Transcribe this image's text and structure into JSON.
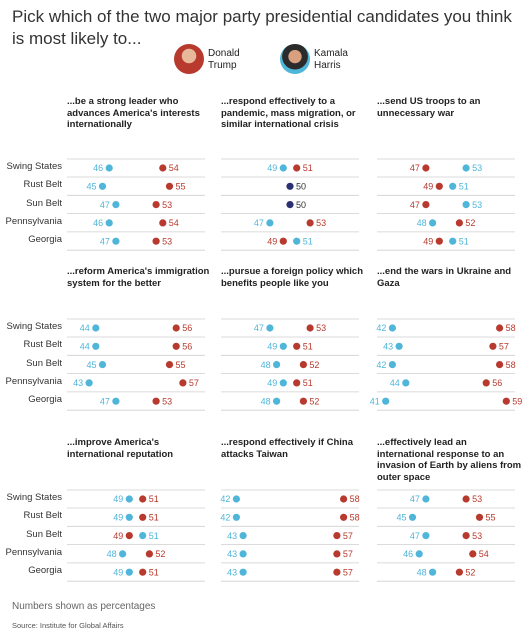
{
  "title": "Pick which of the two major party presidential candidates you think is most likely to...",
  "legend": [
    {
      "name_line1": "Donald",
      "name_line2": "Trump",
      "color": "#b83a2e"
    },
    {
      "name_line1": "Kamala",
      "name_line2": "Harris",
      "color": "#4fb6d9"
    }
  ],
  "footnote": "Numbers shown as percentages",
  "source": "Source: Institute for Global Affairs",
  "colors": {
    "trump": "#b83a2e",
    "harris": "#4fb6d9",
    "tie": "#2b2f73"
  },
  "chart_data": {
    "type": "dot-plot",
    "regions": [
      "Swing States",
      "Rust Belt",
      "Sun Belt",
      "Pennsylvania",
      "Georgia"
    ],
    "series": [
      {
        "name": "Donald Trump"
      },
      {
        "name": "Kamala Harris"
      }
    ],
    "xlim": [
      40,
      60
    ],
    "unit": "%",
    "panels": [
      {
        "title": "...be a strong leader who advances America's interests internationally",
        "trump": [
          54,
          55,
          53,
          54,
          53
        ],
        "harris": [
          46,
          45,
          47,
          46,
          47
        ]
      },
      {
        "title": "...respond effectively to a pandemic, mass migration, or similar international crisis",
        "trump": [
          51,
          50,
          50,
          53,
          49
        ],
        "harris": [
          49,
          50,
          50,
          47,
          51
        ]
      },
      {
        "title": "...send US troops to an unnecessary war",
        "trump": [
          47,
          49,
          47,
          52,
          49
        ],
        "harris": [
          53,
          51,
          53,
          48,
          51
        ]
      },
      {
        "title": "...reform America's immigration system for the better",
        "trump": [
          56,
          56,
          55,
          57,
          53
        ],
        "harris": [
          44,
          44,
          45,
          43,
          47
        ]
      },
      {
        "title": "...pursue a foreign policy which benefits people like you",
        "trump": [
          53,
          51,
          52,
          51,
          52
        ],
        "harris": [
          47,
          49,
          48,
          49,
          48
        ]
      },
      {
        "title": "...end the wars in Ukraine and Gaza",
        "trump": [
          58,
          57,
          58,
          56,
          59
        ],
        "harris": [
          42,
          43,
          42,
          44,
          41
        ]
      },
      {
        "title": "...improve America's international reputation",
        "trump": [
          51,
          51,
          49,
          52,
          51
        ],
        "harris": [
          49,
          49,
          51,
          48,
          49
        ]
      },
      {
        "title": "...respond effectively if China attacks Taiwan",
        "trump": [
          58,
          58,
          57,
          57,
          57
        ],
        "harris": [
          42,
          42,
          43,
          43,
          43
        ]
      },
      {
        "title": "...effectively lead an international response to an invasion of Earth by aliens from outer space",
        "trump": [
          53,
          55,
          53,
          54,
          52
        ],
        "harris": [
          47,
          45,
          47,
          46,
          48
        ]
      }
    ]
  }
}
